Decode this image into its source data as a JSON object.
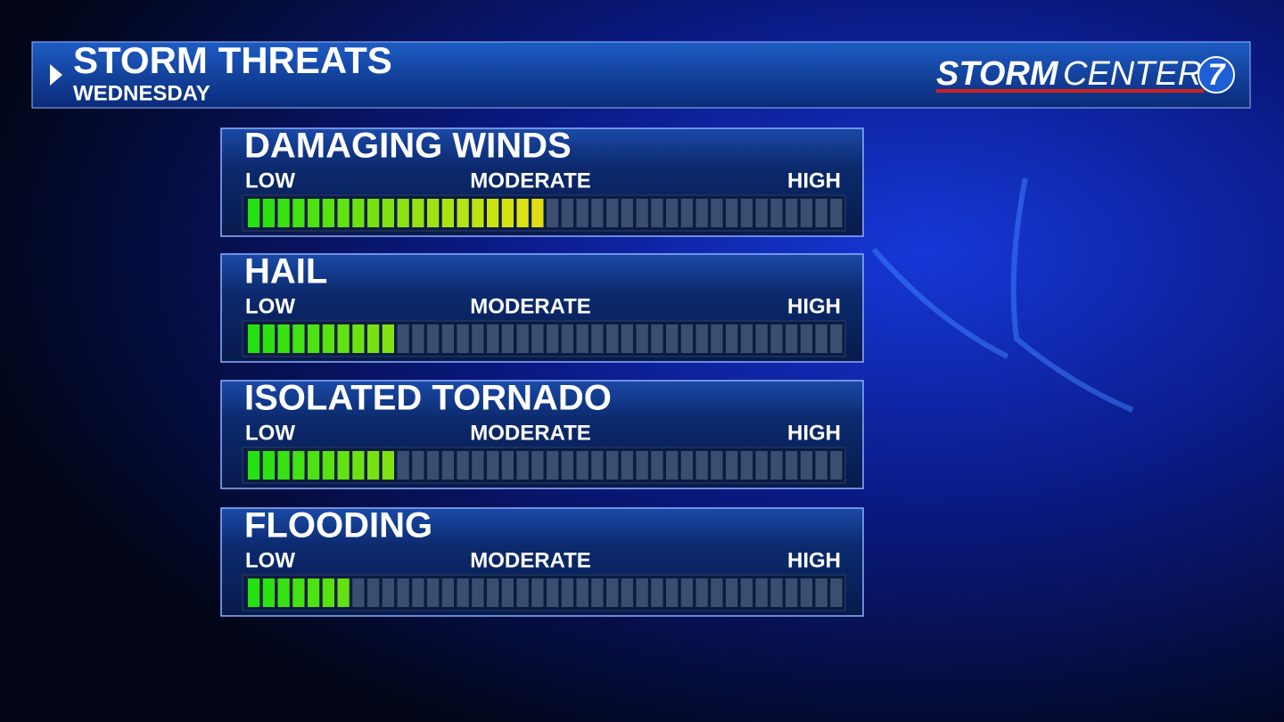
{
  "header": {
    "title": "STORM THREATS",
    "subtitle": "WEDNESDAY"
  },
  "logo": {
    "word1": "STORM",
    "word2": "CENTER",
    "number": "7"
  },
  "scale": {
    "low": "LOW",
    "moderate": "MODERATE",
    "high": "HIGH",
    "segments": 40
  },
  "threats": [
    {
      "name": "DAMAGING WINDS",
      "level": 20
    },
    {
      "name": "HAIL",
      "level": 10
    },
    {
      "name": "ISOLATED TORNADO",
      "level": 10
    },
    {
      "name": "FLOODING",
      "level": 7
    }
  ]
}
